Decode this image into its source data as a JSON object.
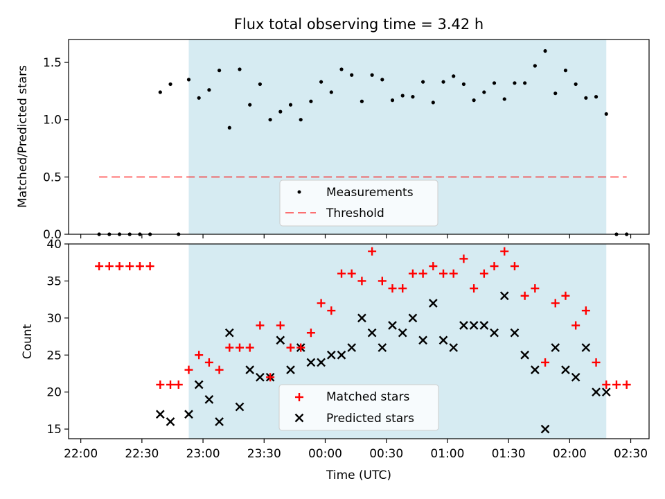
{
  "figure": {
    "title": "Flux total observing time = 3.42 h",
    "xlabel": "Time (UTC)"
  },
  "colors": {
    "band": "#add8e6",
    "threshold": "#ff0000",
    "matched": "#ff0000",
    "predicted": "#000000",
    "measurements": "#000000"
  },
  "chart_data": [
    {
      "type": "scatter",
      "panel": "top",
      "ylabel": "Matched/Predicted stars",
      "xlim": [
        "21:54",
        "02:39"
      ],
      "ylim": [
        0,
        1.7
      ],
      "yticks": [
        0.0,
        0.5,
        1.0,
        1.5
      ],
      "ytick_labels": [
        "0.0",
        "0.5",
        "1.0",
        "1.5"
      ],
      "shaded_band": {
        "x_start": "22:53",
        "x_end": "02:18"
      },
      "legend_position": "lower center",
      "legend": [
        "Measurements",
        "Threshold"
      ],
      "series": [
        {
          "name": "Measurements",
          "marker": "dot",
          "x": [
            "22:09",
            "22:14",
            "22:19",
            "22:24",
            "22:29",
            "22:34",
            "22:39",
            "22:44",
            "22:48",
            "22:53",
            "22:58",
            "23:03",
            "23:08",
            "23:13",
            "23:18",
            "23:23",
            "23:28",
            "23:33",
            "23:38",
            "23:43",
            "23:48",
            "23:53",
            "23:58",
            "00:03",
            "00:08",
            "00:13",
            "00:18",
            "00:23",
            "00:28",
            "00:33",
            "00:38",
            "00:43",
            "00:48",
            "00:53",
            "00:58",
            "01:03",
            "01:08",
            "01:13",
            "01:18",
            "01:23",
            "01:28",
            "01:33",
            "01:38",
            "01:43",
            "01:48",
            "01:53",
            "01:58",
            "02:03",
            "02:08",
            "02:13",
            "02:18",
            "02:23",
            "02:28"
          ],
          "y": [
            0.0,
            0.0,
            0.0,
            0.0,
            0.0,
            0.0,
            1.24,
            1.31,
            0.0,
            1.35,
            1.19,
            1.26,
            1.43,
            0.93,
            1.44,
            1.13,
            1.31,
            1.0,
            1.07,
            1.13,
            1.0,
            1.16,
            1.33,
            1.24,
            1.44,
            1.39,
            1.16,
            1.39,
            1.35,
            1.17,
            1.21,
            1.2,
            1.33,
            1.15,
            1.33,
            1.38,
            1.31,
            1.17,
            1.24,
            1.32,
            1.18,
            1.32,
            1.32,
            1.47,
            1.6,
            1.23,
            1.43,
            1.31,
            1.19,
            1.2,
            1.05,
            0.0,
            0.0
          ]
        },
        {
          "name": "Threshold",
          "marker": "dashed-line",
          "x": [
            "22:09",
            "02:28"
          ],
          "y": [
            0.5,
            0.5
          ]
        }
      ]
    },
    {
      "type": "scatter",
      "panel": "bottom",
      "ylabel": "Count",
      "xlim": [
        "21:54",
        "02:39"
      ],
      "ylim": [
        13.7,
        40
      ],
      "yticks": [
        15,
        20,
        25,
        30,
        35,
        40
      ],
      "ytick_labels": [
        "15",
        "20",
        "25",
        "30",
        "35",
        "40"
      ],
      "xtick_labels": [
        "22:00",
        "22:30",
        "23:00",
        "23:30",
        "00:00",
        "00:30",
        "01:00",
        "01:30",
        "02:00",
        "02:30"
      ],
      "shaded_band": {
        "x_start": "22:53",
        "x_end": "02:18"
      },
      "legend_position": "lower center",
      "legend": [
        "Matched stars",
        "Predicted stars"
      ],
      "series": [
        {
          "name": "Matched stars",
          "marker": "plus",
          "x": [
            "22:09",
            "22:14",
            "22:19",
            "22:24",
            "22:29",
            "22:34",
            "22:39",
            "22:44",
            "22:48",
            "22:53",
            "22:58",
            "23:03",
            "23:08",
            "23:13",
            "23:18",
            "23:23",
            "23:28",
            "23:33",
            "23:38",
            "23:43",
            "23:48",
            "23:53",
            "23:58",
            "00:03",
            "00:08",
            "00:13",
            "00:18",
            "00:23",
            "00:28",
            "00:33",
            "00:38",
            "00:43",
            "00:48",
            "00:53",
            "00:58",
            "01:03",
            "01:08",
            "01:13",
            "01:18",
            "01:23",
            "01:28",
            "01:33",
            "01:38",
            "01:43",
            "01:48",
            "01:53",
            "01:58",
            "02:03",
            "02:08",
            "02:13",
            "02:18",
            "02:23",
            "02:28"
          ],
          "y": [
            37,
            37,
            37,
            37,
            37,
            37,
            21,
            21,
            21,
            23,
            25,
            24,
            23,
            26,
            26,
            26,
            29,
            22,
            29,
            26,
            26,
            28,
            32,
            31,
            36,
            36,
            35,
            39,
            35,
            34,
            34,
            36,
            36,
            37,
            36,
            36,
            38,
            34,
            36,
            37,
            39,
            37,
            33,
            34,
            24,
            32,
            33,
            29,
            31,
            24,
            21,
            21,
            21
          ]
        },
        {
          "name": "Predicted stars",
          "marker": "x",
          "x": [
            "22:39",
            "22:44",
            "22:53",
            "22:58",
            "23:03",
            "23:08",
            "23:13",
            "23:18",
            "23:23",
            "23:28",
            "23:33",
            "23:38",
            "23:43",
            "23:48",
            "23:53",
            "23:58",
            "00:03",
            "00:08",
            "00:13",
            "00:18",
            "00:23",
            "00:28",
            "00:33",
            "00:38",
            "00:43",
            "00:48",
            "00:53",
            "00:58",
            "01:03",
            "01:08",
            "01:13",
            "01:18",
            "01:23",
            "01:28",
            "01:33",
            "01:38",
            "01:43",
            "01:48",
            "01:53",
            "01:58",
            "02:03",
            "02:08",
            "02:13",
            "02:18"
          ],
          "y": [
            17,
            16,
            17,
            21,
            19,
            16,
            28,
            18,
            23,
            22,
            22,
            27,
            23,
            26,
            24,
            24,
            25,
            25,
            26,
            30,
            28,
            26,
            29,
            28,
            30,
            27,
            32,
            27,
            26,
            29,
            29,
            29,
            28,
            33,
            28,
            25,
            23,
            15,
            26,
            23,
            22,
            26,
            20,
            20
          ]
        }
      ]
    }
  ]
}
